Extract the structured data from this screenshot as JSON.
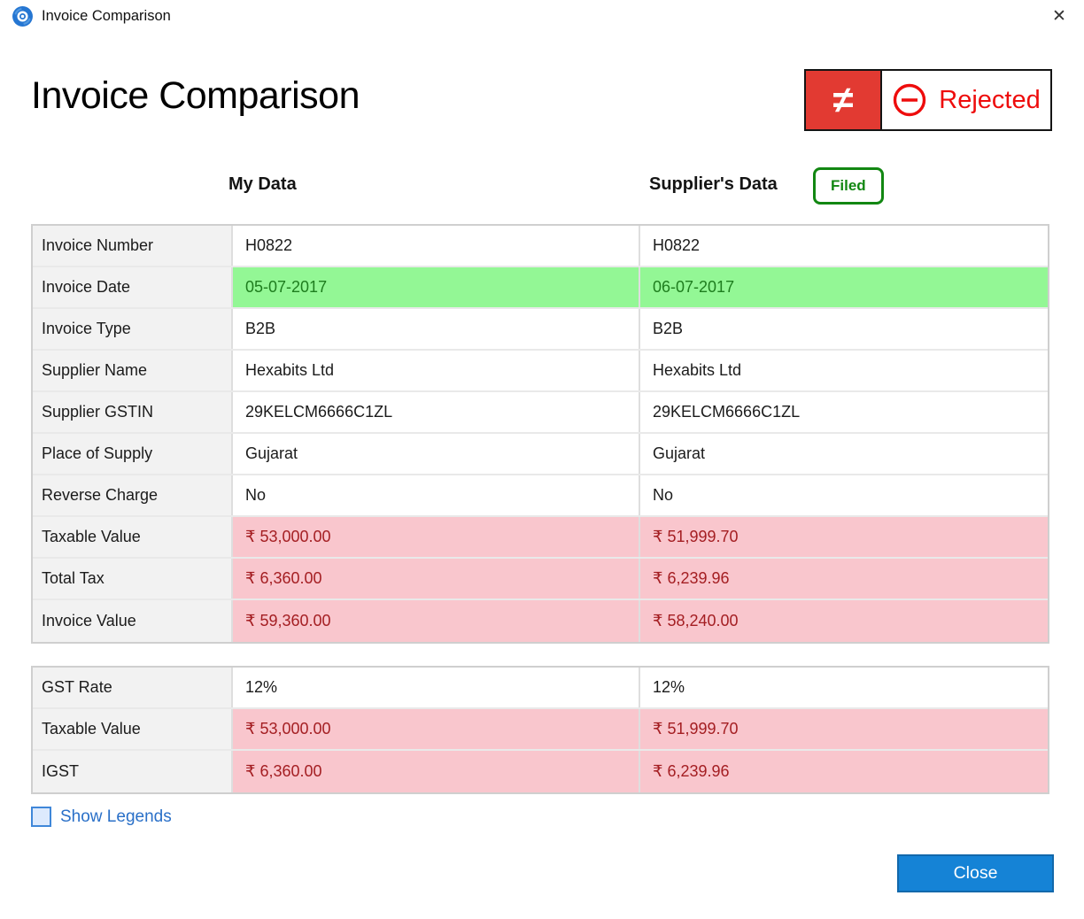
{
  "window": {
    "title": "Invoice Comparison",
    "close_icon": "✕"
  },
  "page": {
    "heading": "Invoice Comparison"
  },
  "status_badge": {
    "mismatch_symbol": "≠",
    "status_label": "Rejected"
  },
  "column_headers": {
    "my_data": "My Data",
    "supplier_data": "Supplier's Data",
    "filed_badge": "Filed"
  },
  "comparison_table": {
    "rows": [
      {
        "label": "Invoice Number",
        "my": "H0822",
        "supplier": "H0822",
        "highlight": "none"
      },
      {
        "label": "Invoice Date",
        "my": "05-07-2017",
        "supplier": "06-07-2017",
        "highlight": "green"
      },
      {
        "label": "Invoice Type",
        "my": "B2B",
        "supplier": "B2B",
        "highlight": "none"
      },
      {
        "label": "Supplier Name",
        "my": "Hexabits Ltd",
        "supplier": "Hexabits Ltd",
        "highlight": "none"
      },
      {
        "label": "Supplier GSTIN",
        "my": "29KELCM6666C1ZL",
        "supplier": "29KELCM6666C1ZL",
        "highlight": "none"
      },
      {
        "label": "Place of Supply",
        "my": "Gujarat",
        "supplier": "Gujarat",
        "highlight": "none"
      },
      {
        "label": "Reverse Charge",
        "my": "No",
        "supplier": "No",
        "highlight": "none"
      },
      {
        "label": "Taxable Value",
        "my": "₹ 53,000.00",
        "supplier": "₹ 51,999.70",
        "highlight": "pink"
      },
      {
        "label": "Total Tax",
        "my": "₹ 6,360.00",
        "supplier": "₹ 6,239.96",
        "highlight": "pink"
      },
      {
        "label": "Invoice Value",
        "my": "₹ 59,360.00",
        "supplier": "₹ 58,240.00",
        "highlight": "pink"
      }
    ]
  },
  "gst_table": {
    "rows": [
      {
        "label": "GST Rate",
        "my": "12%",
        "supplier": "12%",
        "highlight": "none"
      },
      {
        "label": "Taxable Value",
        "my": "₹ 53,000.00",
        "supplier": "₹ 51,999.70",
        "highlight": "pink"
      },
      {
        "label": "IGST",
        "my": "₹ 6,360.00",
        "supplier": "₹ 6,239.96",
        "highlight": "pink"
      }
    ]
  },
  "footer": {
    "show_legends_label": "Show Legends",
    "close_button_label": "Close"
  },
  "colors": {
    "mismatch_red": "#e23a32",
    "rejected_red": "#ee0c0c",
    "filed_green": "#128712",
    "match_green_bg": "#93f795",
    "match_green_text": "#1e7d1e",
    "mismatch_pink_bg": "#f9c6cd",
    "mismatch_pink_text": "#a41e22",
    "label_cell_bg": "#f2f2f2",
    "close_button_blue": "#1583d6",
    "legends_link_blue": "#2a70c8"
  }
}
